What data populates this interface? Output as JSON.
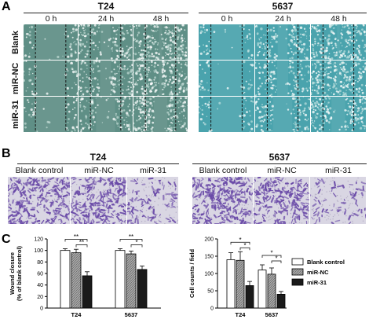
{
  "panel_a": {
    "label": "A",
    "cell_lines": [
      "T24",
      "5637"
    ],
    "timepoints": [
      "0 h",
      "24 h",
      "48 h"
    ],
    "rows": [
      "Blank",
      "miR-NC",
      "miR-31"
    ],
    "colors": {
      "T24_base": "#5f8f86",
      "5637_base": "#4aa3ad"
    }
  },
  "panel_b": {
    "label": "B",
    "cell_lines": [
      "T24",
      "5637"
    ],
    "conditions": [
      "Blank control",
      "miR-NC",
      "miR-31"
    ],
    "colors": {
      "bg": "#d9d6e3",
      "cell": "#6a4aa8"
    }
  },
  "panel_c": {
    "label": "C",
    "legend": [
      "Blank control",
      "miR-NC",
      "miR-31"
    ],
    "chart_data": [
      {
        "type": "bar",
        "categories": [
          "T24",
          "5637"
        ],
        "ylabel": "Wound closure\n(% of blank control)",
        "ylim": [
          0,
          120
        ],
        "yticks": [
          0,
          20,
          40,
          60,
          80,
          100,
          120
        ],
        "series": [
          {
            "name": "Blank control",
            "values": [
              100,
              100
            ],
            "errors": [
              3,
              3
            ]
          },
          {
            "name": "miR-NC",
            "values": [
              96,
              94
            ],
            "errors": [
              6,
              5
            ]
          },
          {
            "name": "miR-31",
            "values": [
              56,
              67
            ],
            "errors": [
              7,
              6
            ]
          }
        ],
        "significance": [
          "**",
          "**",
          "**",
          "*"
        ]
      },
      {
        "type": "bar",
        "categories": [
          "T24",
          "5637"
        ],
        "ylabel": "Cell counts / field",
        "ylim": [
          0,
          200
        ],
        "yticks": [
          0,
          50,
          100,
          150,
          200
        ],
        "series": [
          {
            "name": "Blank control",
            "values": [
              140,
              110
            ],
            "errors": [
              20,
              15
            ]
          },
          {
            "name": "miR-NC",
            "values": [
              138,
              98
            ],
            "errors": [
              25,
              18
            ]
          },
          {
            "name": "miR-31",
            "values": [
              65,
              40
            ],
            "errors": [
              12,
              8
            ]
          }
        ],
        "significance": [
          "*",
          "*",
          "*",
          "*"
        ]
      }
    ]
  }
}
